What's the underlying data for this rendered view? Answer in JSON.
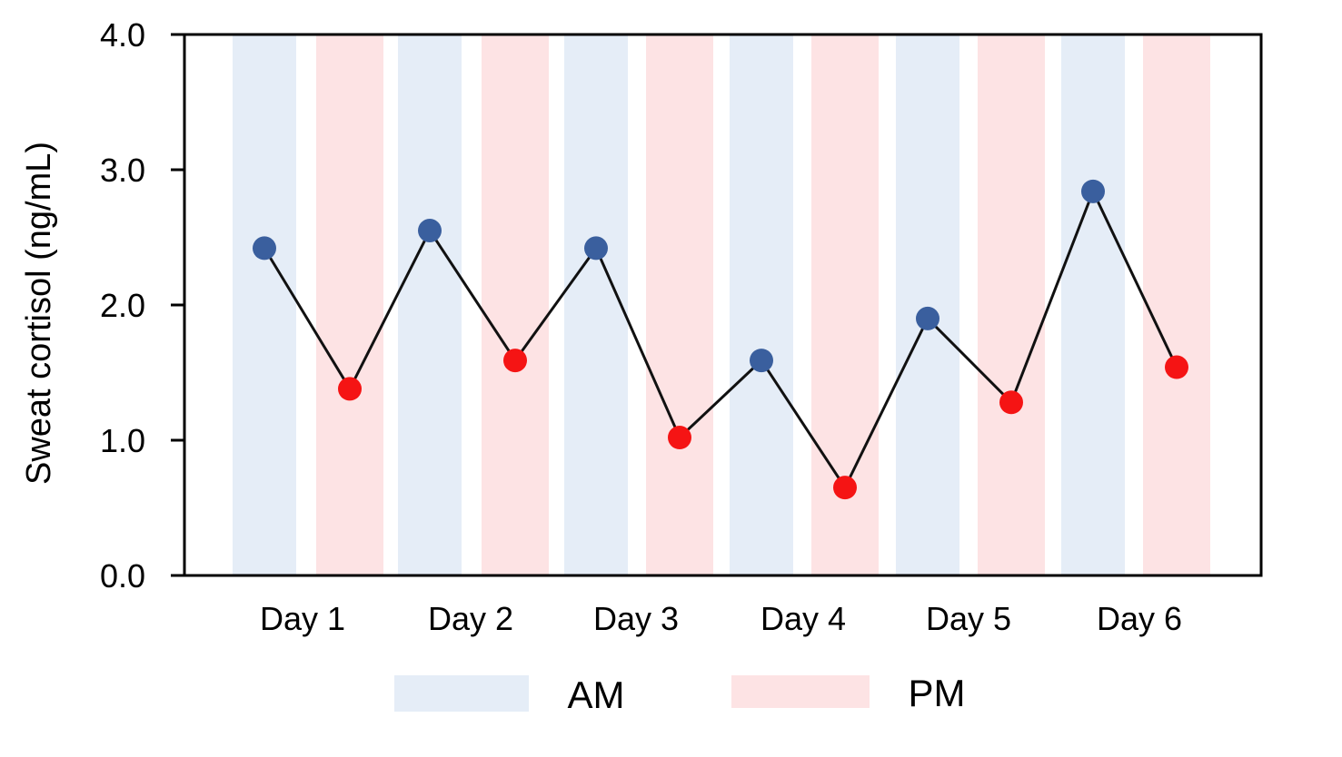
{
  "chart_data": {
    "type": "line",
    "title": "",
    "xlabel": "",
    "ylabel": "Sweat cortisol (ng/mL)",
    "ylim": [
      0,
      4
    ],
    "yticks": [
      "0.0",
      "1.0",
      "2.0",
      "3.0",
      "4.0"
    ],
    "categories": [
      "Day 1",
      "Day 2",
      "Day 3",
      "Day 4",
      "Day 5",
      "Day 6"
    ],
    "grid": false,
    "legend_position": "bottom",
    "series": [
      {
        "name": "AM",
        "band_color": "#e5edf7",
        "marker_color": "#3a5f9e",
        "values": [
          2.42,
          2.55,
          2.42,
          1.59,
          1.9,
          2.84
        ]
      },
      {
        "name": "PM",
        "band_color": "#fde3e4",
        "marker_color": "#f51414",
        "values": [
          1.38,
          1.59,
          1.02,
          0.65,
          1.28,
          1.54
        ]
      }
    ],
    "line_color": "#111111"
  }
}
